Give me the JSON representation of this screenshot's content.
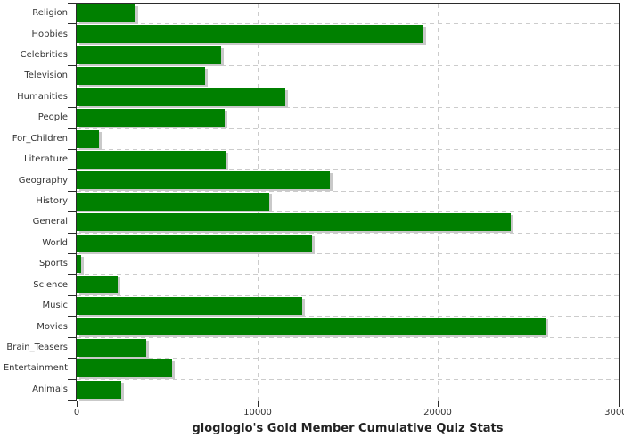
{
  "title": "glogloglo's Gold Member Cumulative Quiz Stats",
  "chart_data": {
    "type": "bar",
    "orientation": "horizontal",
    "title": "glogloglo's Gold Member Cumulative Quiz Stats",
    "categories": [
      "Religion",
      "Hobbies",
      "Celebrities",
      "Television",
      "Humanities",
      "People",
      "For_Children",
      "Literature",
      "Geography",
      "History",
      "General",
      "World",
      "Sports",
      "Science",
      "Music",
      "Movies",
      "Brain_Teasers",
      "Entertainment",
      "Animals"
    ],
    "values": [
      3250,
      19210,
      7980,
      7090,
      11530,
      8180,
      1230,
      8230,
      14000,
      10640,
      24040,
      13050,
      250,
      2270,
      12500,
      25960,
      3840,
      5270,
      2490
    ],
    "xlim": [
      0,
      30000
    ],
    "x_ticks": [
      0,
      10000,
      20000,
      30000
    ],
    "x_tick_labels": [
      "0",
      "10000",
      "20000",
      "30000"
    ],
    "xlabel": "",
    "ylabel": "",
    "grid": true,
    "legend": false,
    "bar_color": "#008000",
    "bar_shadow_color": "#c9c9c9",
    "grid_color": "#cccccc",
    "axis_color": "#2b2b2b",
    "background_color": "#ffffff"
  }
}
